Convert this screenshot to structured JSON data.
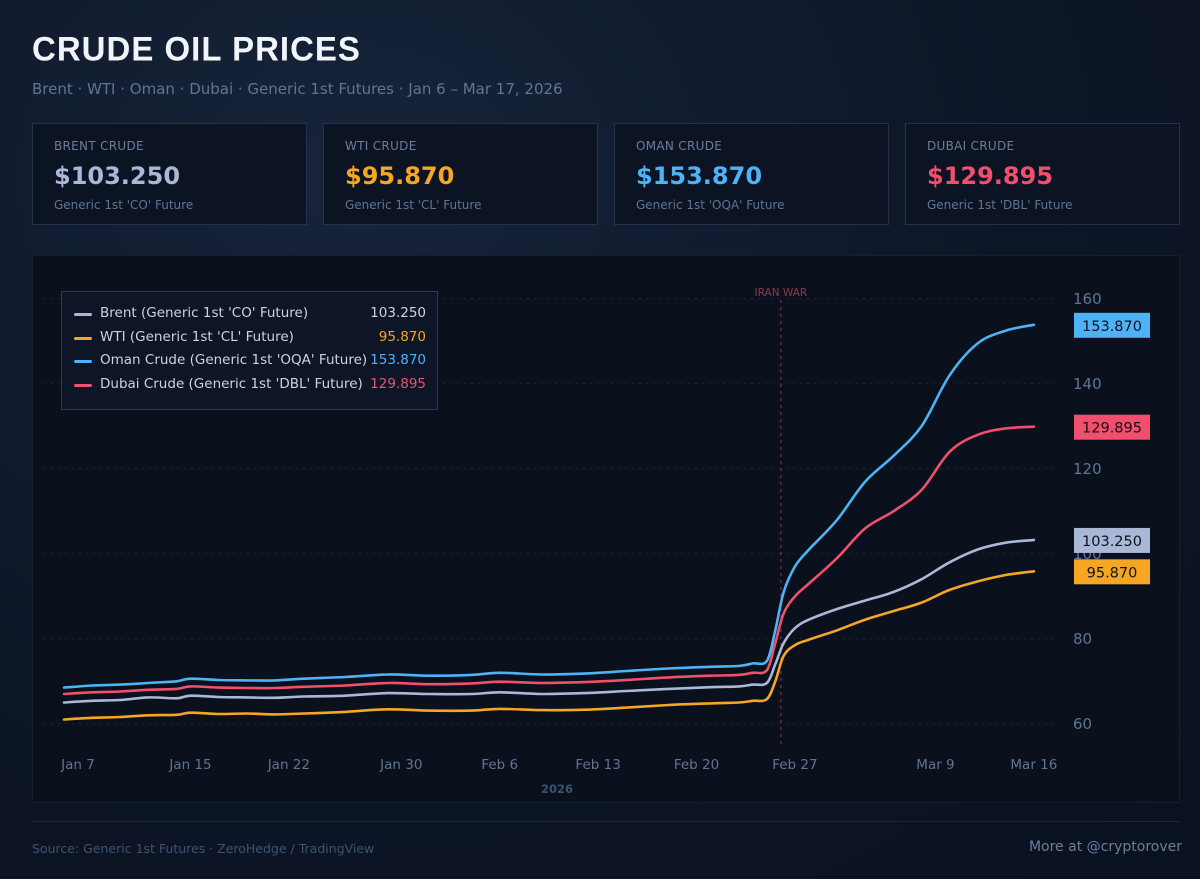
{
  "header": {
    "title": "CRUDE OIL PRICES",
    "subtitle": "Brent · WTI · Oman · Dubai · Generic 1st Futures · Jan 6 – Mar 17, 2026"
  },
  "cards": [
    {
      "label": "BRENT CRUDE",
      "value": "$103.250",
      "sub": "Generic 1st 'CO' Future",
      "color": "#a9b8d6"
    },
    {
      "label": "WTI CRUDE",
      "value": "$95.870",
      "sub": "Generic 1st 'CL' Future",
      "color": "#f5a623"
    },
    {
      "label": "OMAN CRUDE",
      "value": "$153.870",
      "sub": "Generic 1st 'OQA' Future",
      "color": "#4db3f5"
    },
    {
      "label": "DUBAI CRUDE",
      "value": "$129.895",
      "sub": "Generic 1st 'DBL' Future",
      "color": "#f0506e"
    }
  ],
  "legend": [
    {
      "name": "Brent (Generic 1st 'CO' Future)",
      "value": "103.250",
      "color": "#a9b8d6"
    },
    {
      "name": "WTI (Generic 1st 'CL' Future)",
      "value": "95.870",
      "color": "#f5a623"
    },
    {
      "name": "Oman Crude (Generic 1st 'OQA' Future)",
      "value": "153.870",
      "color": "#4db3f5"
    },
    {
      "name": "Dubai Crude (Generic 1st 'DBL' Future)",
      "value": "129.895",
      "color": "#f0506e"
    }
  ],
  "chart_data": {
    "type": "line",
    "title": "CRUDE OIL PRICES",
    "xlabel": "2026",
    "ylabel": "",
    "ylim": [
      55,
      163
    ],
    "xlim": [
      0,
      70
    ],
    "yticks": [
      60,
      80,
      100,
      120,
      140,
      160
    ],
    "y_axis_side": "right",
    "grid": "dotted horizontal",
    "legend_position": "top-left",
    "x_ticks": [
      {
        "x": 0,
        "label": "Jan 7"
      },
      {
        "x": 8,
        "label": "Jan 15"
      },
      {
        "x": 15,
        "label": "Jan 22"
      },
      {
        "x": 23,
        "label": "Jan 30"
      },
      {
        "x": 30,
        "label": "Feb 6"
      },
      {
        "x": 37,
        "label": "Feb 13"
      },
      {
        "x": 44,
        "label": "Feb 20"
      },
      {
        "x": 51,
        "label": "Feb 27"
      },
      {
        "x": 61,
        "label": "Mar 9"
      },
      {
        "x": 68,
        "label": "Mar 16"
      }
    ],
    "annotations": [
      {
        "x": 51,
        "label": "IRAN WAR"
      }
    ],
    "series": [
      {
        "name": "Brent (Generic 1st 'CO' Future)",
        "color": "#a9b8d6",
        "last_label": "103.250",
        "x": [
          0,
          2,
          4,
          6,
          8,
          9,
          11,
          13,
          15,
          17,
          20,
          23,
          26,
          29,
          31,
          34,
          37,
          40,
          43,
          46,
          48,
          49,
          50,
          50.6,
          51.2,
          52,
          53,
          55,
          57,
          59,
          61,
          63,
          65,
          67,
          69
        ],
        "y": [
          65.0,
          65.4,
          65.6,
          66.2,
          66.0,
          66.6,
          66.3,
          66.2,
          66.1,
          66.4,
          66.6,
          67.2,
          67.0,
          67.0,
          67.4,
          67.0,
          67.2,
          67.7,
          68.2,
          68.6,
          68.8,
          69.2,
          69.6,
          74.0,
          79.0,
          82.5,
          84.5,
          87.0,
          89.0,
          91.0,
          94.0,
          98.0,
          101.0,
          102.6,
          103.25
        ]
      },
      {
        "name": "WTI (Generic 1st 'CL' Future)",
        "color": "#f5a623",
        "last_label": "95.870",
        "x": [
          0,
          2,
          4,
          6,
          8,
          9,
          11,
          13,
          15,
          17,
          20,
          23,
          26,
          29,
          31,
          34,
          37,
          40,
          43,
          46,
          48,
          49,
          50,
          50.6,
          51.2,
          52,
          53,
          55,
          57,
          59,
          61,
          63,
          65,
          67,
          69
        ],
        "y": [
          61.0,
          61.4,
          61.6,
          62.0,
          62.1,
          62.6,
          62.3,
          62.4,
          62.2,
          62.4,
          62.8,
          63.4,
          63.1,
          63.1,
          63.5,
          63.2,
          63.3,
          63.8,
          64.4,
          64.8,
          65.0,
          65.4,
          65.8,
          70.0,
          76.0,
          78.5,
          79.8,
          82.0,
          84.5,
          86.5,
          88.5,
          91.5,
          93.5,
          95.0,
          95.87
        ]
      },
      {
        "name": "Oman Crude (Generic 1st 'OQA' Future)",
        "color": "#4db3f5",
        "last_label": "153.870",
        "x": [
          0,
          2,
          4,
          6,
          8,
          9,
          11,
          13,
          15,
          17,
          20,
          23,
          26,
          29,
          31,
          34,
          37,
          40,
          43,
          46,
          48,
          49,
          50,
          50.6,
          51.2,
          52,
          53,
          55,
          57,
          59,
          61,
          63,
          65,
          67,
          69
        ],
        "y": [
          68.5,
          69.0,
          69.2,
          69.6,
          70.0,
          70.6,
          70.3,
          70.2,
          70.2,
          70.6,
          71.0,
          71.6,
          71.3,
          71.5,
          72.0,
          71.6,
          71.8,
          72.4,
          73.0,
          73.4,
          73.6,
          74.2,
          74.8,
          82.0,
          91.0,
          97.0,
          101.0,
          108.0,
          117.0,
          123.0,
          130.0,
          142.0,
          149.5,
          152.5,
          153.87
        ]
      },
      {
        "name": "Dubai Crude (Generic 1st 'DBL' Future)",
        "color": "#f0506e",
        "last_label": "129.895",
        "x": [
          0,
          2,
          4,
          6,
          8,
          9,
          11,
          13,
          15,
          17,
          20,
          23,
          26,
          29,
          31,
          34,
          37,
          40,
          43,
          46,
          48,
          49,
          50,
          50.6,
          51.2,
          52,
          53,
          55,
          57,
          59,
          61,
          63,
          65,
          67,
          69
        ],
        "y": [
          67.0,
          67.4,
          67.6,
          68.0,
          68.2,
          68.8,
          68.5,
          68.4,
          68.4,
          68.7,
          69.0,
          69.6,
          69.3,
          69.5,
          69.9,
          69.6,
          69.8,
          70.3,
          70.9,
          71.3,
          71.5,
          72.0,
          72.6,
          79.0,
          86.0,
          90.0,
          93.0,
          99.0,
          106.0,
          110.0,
          115.0,
          124.0,
          128.0,
          129.5,
          129.895
        ]
      }
    ]
  },
  "footer": {
    "source": "Source: Generic 1st Futures · ZeroHedge / TradingView",
    "credit": "More at @cryptorover"
  }
}
